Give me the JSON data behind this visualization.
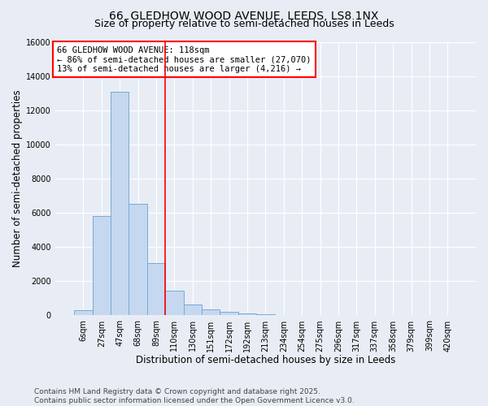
{
  "title1": "66, GLEDHOW WOOD AVENUE, LEEDS, LS8 1NX",
  "title2": "Size of property relative to semi-detached houses in Leeds",
  "xlabel": "Distribution of semi-detached houses by size in Leeds",
  "ylabel": "Number of semi-detached properties",
  "categories": [
    "6sqm",
    "27sqm",
    "47sqm",
    "68sqm",
    "89sqm",
    "110sqm",
    "130sqm",
    "151sqm",
    "172sqm",
    "192sqm",
    "213sqm",
    "234sqm",
    "254sqm",
    "275sqm",
    "296sqm",
    "317sqm",
    "337sqm",
    "358sqm",
    "379sqm",
    "399sqm",
    "420sqm"
  ],
  "values": [
    300,
    5800,
    13100,
    6550,
    3050,
    1450,
    650,
    350,
    200,
    100,
    50,
    0,
    0,
    0,
    0,
    0,
    0,
    0,
    0,
    0,
    0
  ],
  "bar_color": "#c5d8f0",
  "bar_edge_color": "#7aaad4",
  "background_color": "#e8edf5",
  "grid_color": "#ffffff",
  "vline_position": 4.5,
  "vline_color": "red",
  "annotation_title": "66 GLEDHOW WOOD AVENUE: 118sqm",
  "annotation_line1": "← 86% of semi-detached houses are smaller (27,070)",
  "annotation_line2": "13% of semi-detached houses are larger (4,216) →",
  "annotation_box_edge_color": "red",
  "ylim": [
    0,
    16000
  ],
  "yticks": [
    0,
    2000,
    4000,
    6000,
    8000,
    10000,
    12000,
    14000,
    16000
  ],
  "footer1": "Contains HM Land Registry data © Crown copyright and database right 2025.",
  "footer2": "Contains public sector information licensed under the Open Government Licence v3.0.",
  "title1_fontsize": 10,
  "title2_fontsize": 9,
  "axis_label_fontsize": 8.5,
  "tick_fontsize": 7,
  "annotation_fontsize": 7.5,
  "footer_fontsize": 6.5
}
